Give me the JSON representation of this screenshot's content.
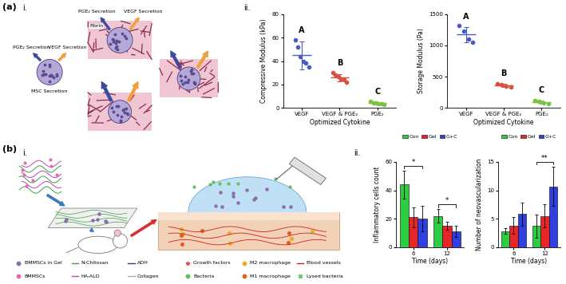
{
  "panel_labels": {
    "a": {
      "label": "(a)",
      "parts": [
        "i.",
        "ii."
      ]
    },
    "b": {
      "label": "(b)",
      "parts": [
        "i.",
        "ii."
      ]
    }
  },
  "diagrams": {
    "a_i": {
      "top_panel": {
        "fibrin": "Fibrin",
        "left_arrow": "PGE₂ Secretion",
        "right_arrow": "VEGF Secretion"
      },
      "free_cell": {
        "left_arrow": "PGE₂ Secretion",
        "right_arrow": "VEGF Secretion",
        "bottom": "MSC Secretion"
      }
    },
    "b_i": {
      "legend_items": [
        "BMMSCs in Gel",
        "N-Chitosan",
        "ADH",
        "Growth factors",
        "M2 macrophage",
        "Blood vessels",
        "BMMSCs",
        "HA-ALD",
        "Collagen",
        "Bacteria",
        "M1 macrophage",
        "Lysed bacteria"
      ]
    }
  },
  "chart_data": [
    {
      "type": "scatter",
      "ylabel": "Compressive Modulus (kPa)",
      "xlabel": "Optimized Cytokine",
      "categories": [
        "VEGF",
        "VEGF & PGE₂",
        "PGE₂"
      ],
      "colors": [
        "#4a5cc4",
        "#d9513c",
        "#7cc242"
      ],
      "marker": "circle",
      "points": [
        [
          58,
          52,
          44,
          40,
          38,
          35
        ],
        [
          30,
          28,
          27,
          25,
          24,
          22
        ],
        [
          5.5,
          4.5,
          4,
          3.5,
          3.5,
          3
        ]
      ],
      "mean": [
        45,
        26,
        4
      ],
      "sd": [
        12,
        3,
        1
      ],
      "group_letters": [
        "A",
        "B",
        "C"
      ],
      "ylim": [
        0,
        80
      ],
      "yticks": [
        0,
        20,
        40,
        60,
        80
      ]
    },
    {
      "type": "scatter",
      "ylabel": "Storage Modulus (Pa)",
      "xlabel": "Optimized Cytokine",
      "categories": [
        "VEGF",
        "VEGF & PGE₂",
        "PGE₂"
      ],
      "colors": [
        "#4a5cc4",
        "#d9513c",
        "#7cc242"
      ],
      "marker": "circle",
      "points": [
        [
          1320,
          1230,
          1100,
          1050
        ],
        [
          390,
          370,
          350,
          340
        ],
        [
          120,
          100,
          80,
          65
        ]
      ],
      "mean": [
        1175,
        362,
        91
      ],
      "sd": [
        120,
        22,
        24
      ],
      "group_letters": [
        "A",
        "B",
        "C"
      ],
      "ylim": [
        0,
        1500
      ],
      "yticks": [
        0,
        500,
        1000,
        1500
      ]
    },
    {
      "type": "bar",
      "ylabel": "Inflammatory cells count",
      "xlabel": "Time (days)",
      "categories": [
        "6",
        "12"
      ],
      "series": [
        {
          "name": "Con",
          "color": "#2ecc40",
          "values": [
            44,
            22
          ],
          "errors": [
            10,
            5
          ]
        },
        {
          "name": "Gel",
          "color": "#e8262a",
          "values": [
            21,
            15
          ],
          "errors": [
            7,
            3
          ]
        },
        {
          "name": "G+C",
          "color": "#2f3fe0",
          "values": [
            20,
            11
          ],
          "errors": [
            9,
            4
          ]
        }
      ],
      "ylim": [
        0,
        60
      ],
      "yticks": [
        0,
        20,
        40,
        60
      ],
      "legend": "upper center",
      "significance": [
        {
          "category": "6",
          "from": "Con",
          "to": "G+C",
          "text": "*"
        },
        {
          "category": "12",
          "from": "Con",
          "to": "G+C",
          "text": "*"
        }
      ]
    },
    {
      "type": "bar",
      "ylabel": "Number of neovascularization",
      "xlabel": "Time (days)",
      "categories": [
        "6",
        "12"
      ],
      "series": [
        {
          "name": "Con",
          "color": "#2ecc40",
          "values": [
            2.8,
            3.7
          ],
          "errors": [
            0.5,
            2.0
          ]
        },
        {
          "name": "Gel",
          "color": "#e8262a",
          "values": [
            3.8,
            5.5
          ],
          "errors": [
            1.5,
            2.0
          ]
        },
        {
          "name": "G+C",
          "color": "#2f3fe0",
          "values": [
            5.8,
            10.7
          ],
          "errors": [
            2.0,
            3.5
          ]
        }
      ],
      "ylim": [
        0,
        15
      ],
      "yticks": [
        0,
        5,
        10,
        15
      ],
      "legend": "upper center",
      "significance": [
        {
          "category": "12",
          "from": "Con",
          "to": "G+C",
          "text": "**"
        }
      ]
    }
  ]
}
